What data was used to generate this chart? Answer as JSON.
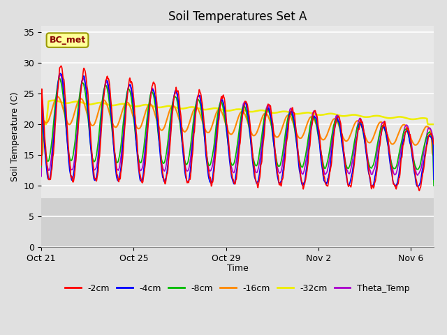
{
  "title": "Soil Temperatures Set A",
  "xlabel": "Time",
  "ylabel": "Soil Temperature (C)",
  "ylim": [
    0,
    36
  ],
  "yticks": [
    0,
    5,
    10,
    15,
    20,
    25,
    30,
    35
  ],
  "annotation": "BC_met",
  "colors": {
    "-2cm": "#FF0000",
    "-4cm": "#0000FF",
    "-8cm": "#00BB00",
    "-16cm": "#FF8800",
    "-32cm": "#EEEE00",
    "Theta_Temp": "#AA00CC"
  },
  "line_widths": {
    "-2cm": 1.2,
    "-4cm": 1.2,
    "-8cm": 1.2,
    "-16cm": 1.5,
    "-32cm": 1.8,
    "Theta_Temp": 1.2
  },
  "figure_bg": "#E0E0E0",
  "plot_bg_upper": "#E8E8E8",
  "plot_bg_lower": "#D0D0D0",
  "grid_color": "#FFFFFF",
  "x_tick_labels": [
    "Oct 21",
    "Oct 25",
    "Oct 29",
    "Nov 2",
    "Nov 6"
  ],
  "x_tick_positions": [
    0,
    4,
    8,
    12,
    16
  ],
  "title_fontsize": 12,
  "label_fontsize": 9,
  "tick_fontsize": 9,
  "legend_fontsize": 9
}
